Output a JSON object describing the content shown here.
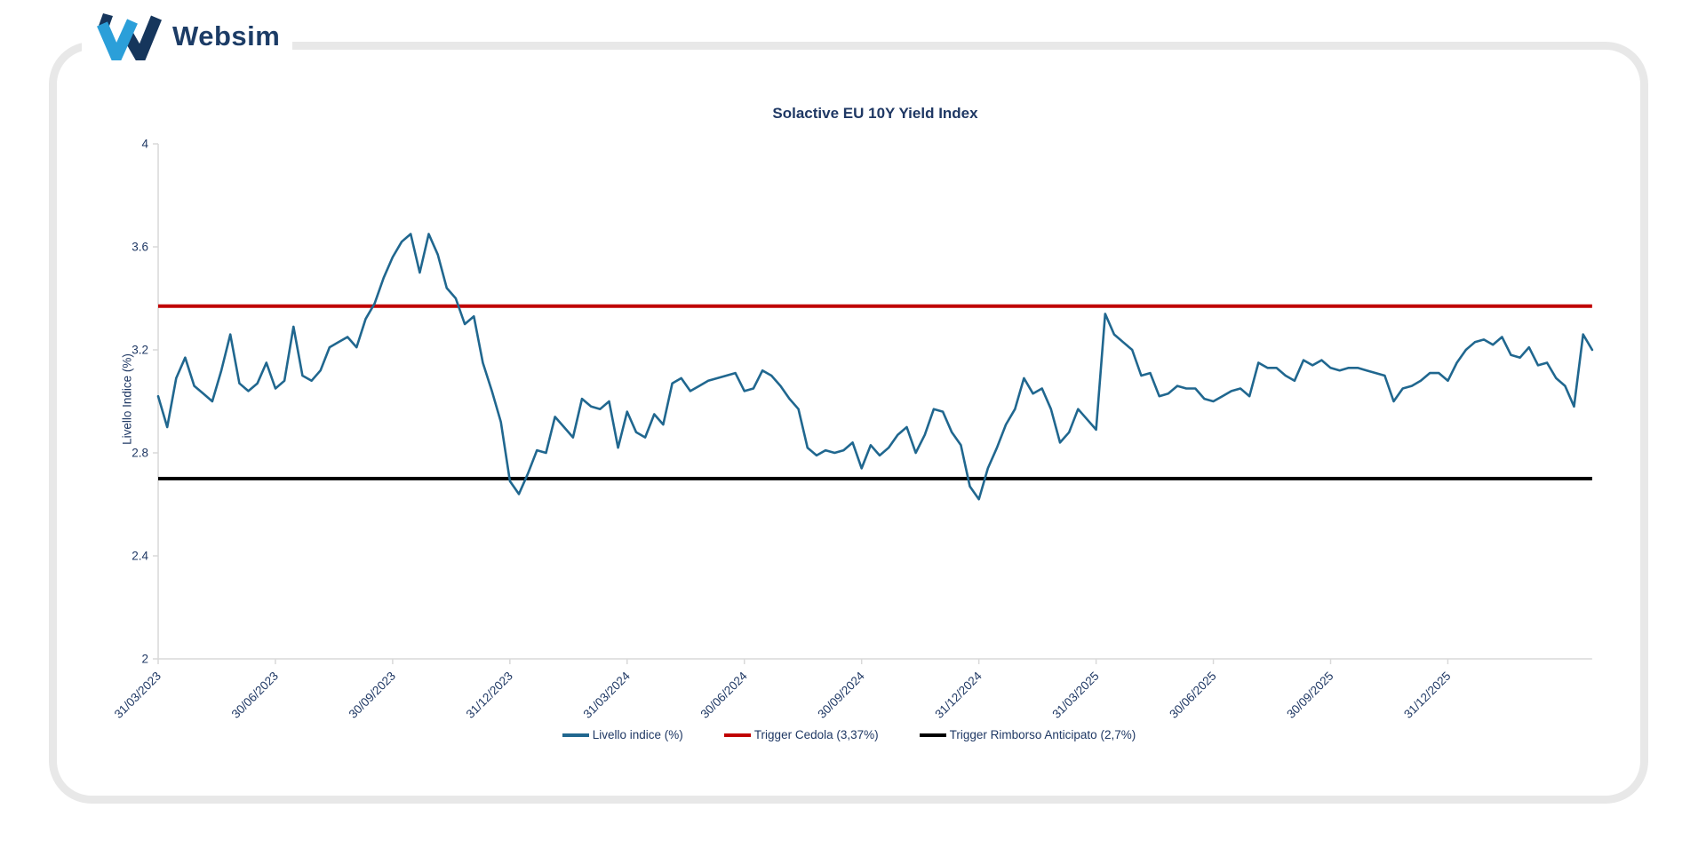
{
  "logo": {
    "text": "Websim"
  },
  "colors": {
    "accent_light_blue": "#2b9fd9",
    "accent_navy": "#16365c",
    "text_navy": "#1f3864",
    "axis_gray": "#d9d9d9",
    "card_border": "#e8e8e8",
    "series_line": "#20678f",
    "trigger_cedola": "#c00000",
    "trigger_rimborso": "#000000"
  },
  "legend": [
    {
      "label": "Livello indice (%)",
      "color": "#20678f"
    },
    {
      "label": "Trigger Cedola (3,37%)",
      "color": "#c00000"
    },
    {
      "label": "Trigger Rimborso Anticipato (2,7%)",
      "color": "#000000"
    }
  ],
  "chart_data": {
    "type": "line",
    "title": "Solactive EU 10Y Yield Index",
    "xlabel": "",
    "ylabel": "Livello Indice (%)",
    "ylim": [
      2,
      4
    ],
    "y_ticks": [
      4,
      3.6,
      3.2,
      2.8,
      2.4,
      2
    ],
    "grid": false,
    "legend_position": "bottom",
    "x_tick_labels": [
      "31/03/2023",
      "30/06/2023",
      "30/09/2023",
      "31/12/2023",
      "31/03/2024",
      "30/06/2024",
      "30/09/2024",
      "31/12/2024",
      "31/03/2025",
      "30/06/2025",
      "30/09/2025",
      "31/12/2025"
    ],
    "x_tick_weeks": [
      0,
      13,
      26,
      39,
      52,
      65,
      78,
      91,
      104,
      117,
      130,
      143
    ],
    "series": [
      {
        "name": "Livello indice (%)",
        "color": "#20678f",
        "frequency": "weekly",
        "start_date": "31/03/2023",
        "values": [
          3.02,
          2.9,
          3.09,
          3.17,
          3.06,
          3.03,
          3.0,
          3.12,
          3.26,
          3.07,
          3.04,
          3.07,
          3.15,
          3.05,
          3.08,
          3.29,
          3.1,
          3.08,
          3.12,
          3.21,
          3.23,
          3.25,
          3.21,
          3.32,
          3.38,
          3.48,
          3.56,
          3.62,
          3.65,
          3.5,
          3.65,
          3.57,
          3.44,
          3.4,
          3.3,
          3.33,
          3.15,
          3.04,
          2.92,
          2.69,
          2.64,
          2.72,
          2.81,
          2.8,
          2.94,
          2.9,
          2.86,
          3.01,
          2.98,
          2.97,
          3.0,
          2.82,
          2.96,
          2.88,
          2.86,
          2.95,
          2.91,
          3.07,
          3.09,
          3.04,
          3.06,
          3.08,
          3.09,
          3.1,
          3.11,
          3.04,
          3.05,
          3.12,
          3.1,
          3.06,
          3.01,
          2.97,
          2.82,
          2.79,
          2.81,
          2.8,
          2.81,
          2.84,
          2.74,
          2.83,
          2.79,
          2.82,
          2.87,
          2.9,
          2.8,
          2.87,
          2.97,
          2.96,
          2.88,
          2.83,
          2.67,
          2.62,
          2.74,
          2.82,
          2.91,
          2.97,
          3.09,
          3.03,
          3.05,
          2.97,
          2.84,
          2.88,
          2.97,
          2.93,
          2.89,
          3.34,
          3.26,
          3.23,
          3.2,
          3.1,
          3.11,
          3.02,
          3.03,
          3.06,
          3.05,
          3.05,
          3.01,
          3.0,
          3.02,
          3.04,
          3.05,
          3.02,
          3.15,
          3.13,
          3.13,
          3.1,
          3.08,
          3.16,
          3.14,
          3.16,
          3.13,
          3.12,
          3.13,
          3.13,
          3.12,
          3.11,
          3.1,
          3.0,
          3.05,
          3.06,
          3.08,
          3.11,
          3.11,
          3.08,
          3.15,
          3.2,
          3.23,
          3.24,
          3.22,
          3.25,
          3.18,
          3.17,
          3.21,
          3.14,
          3.15,
          3.09,
          3.06,
          2.98,
          3.26,
          3.2
        ]
      },
      {
        "name": "Trigger Cedola (3,37%)",
        "color": "#c00000",
        "value": 3.37
      },
      {
        "name": "Trigger Rimborso Anticipato (2,7%)",
        "color": "#000000",
        "value": 2.7
      }
    ]
  }
}
